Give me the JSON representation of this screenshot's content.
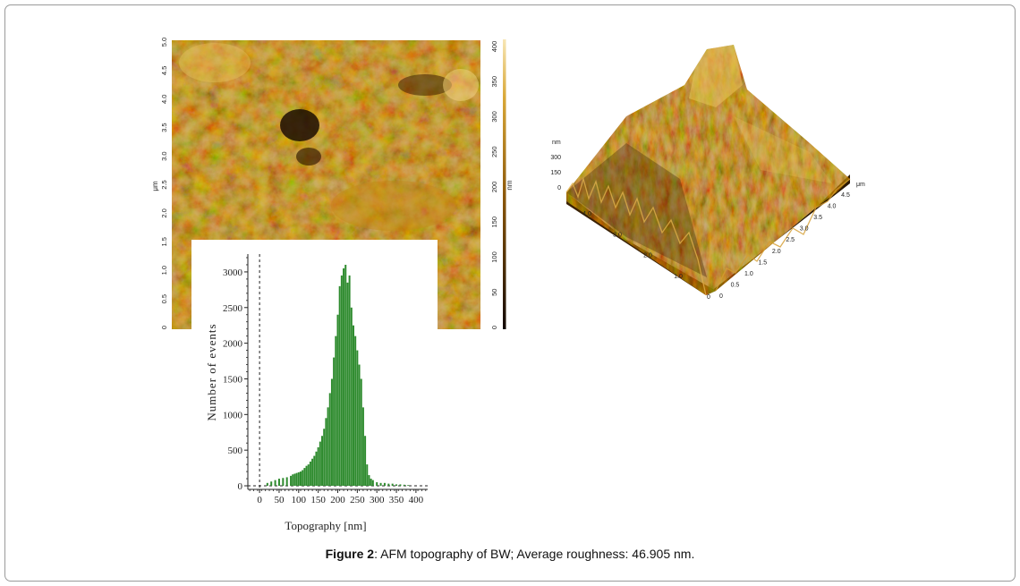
{
  "caption": {
    "figure_label": "Figure 2",
    "text": ": AFM topography of BW; Average roughness: 46.905 nm."
  },
  "afm_2d": {
    "y_axis_unit": "μm",
    "y_ticks": [
      "0",
      "0.5",
      "1.0",
      "1.5",
      "2.0",
      "2.5",
      "3.0",
      "3.5",
      "4.0",
      "4.5",
      "5.0"
    ],
    "colorbar_unit": "nm",
    "colorbar_ticks": [
      "0",
      "50",
      "100",
      "150",
      "200",
      "250",
      "300",
      "350",
      "400"
    ],
    "colors": {
      "dark": "#1c0e02",
      "mid": "#b07a10",
      "light": "#f4dc9c"
    }
  },
  "afm_3d": {
    "z_unit": "nm",
    "z_ticks": [
      "300",
      "150",
      "0"
    ],
    "left_axis_ticks": [
      "4.0",
      "3.0",
      "2.0",
      "1.0",
      "0"
    ],
    "right_axis_unit": "μm",
    "right_axis_ticks": [
      "4.5",
      "4.0",
      "3.5",
      "3.0",
      "2.5",
      "2.0",
      "1.5",
      "1.0",
      "0.5",
      "0"
    ],
    "colors": {
      "shadow": "#3a2104",
      "surface": "#a9720f",
      "highlight": "#e9c25a"
    }
  },
  "chart_data": {
    "type": "bar",
    "title": "",
    "xlabel": "Topography [nm]",
    "ylabel": "Number of events",
    "x_ticks": [
      0,
      50,
      100,
      150,
      200,
      250,
      300,
      350,
      400
    ],
    "y_ticks": [
      0,
      500,
      1000,
      1500,
      2000,
      2500,
      3000
    ],
    "xlim": [
      -30,
      430
    ],
    "ylim": [
      -50,
      3250
    ],
    "bar_color": "#2e8b2e",
    "x": [
      20,
      30,
      40,
      50,
      60,
      70,
      80,
      85,
      90,
      95,
      100,
      105,
      110,
      115,
      120,
      125,
      130,
      135,
      140,
      145,
      150,
      155,
      160,
      165,
      170,
      175,
      180,
      185,
      190,
      195,
      200,
      205,
      210,
      215,
      220,
      225,
      230,
      235,
      240,
      245,
      250,
      255,
      260,
      265,
      270,
      275,
      280,
      285,
      290,
      300,
      310,
      320,
      330,
      340,
      350,
      360,
      370,
      380
    ],
    "values": [
      40,
      60,
      80,
      100,
      110,
      120,
      140,
      160,
      170,
      180,
      190,
      200,
      220,
      250,
      280,
      300,
      340,
      380,
      420,
      480,
      540,
      620,
      700,
      800,
      950,
      1100,
      1300,
      1500,
      1800,
      2100,
      2400,
      2800,
      2950,
      3050,
      3100,
      2850,
      2950,
      2500,
      2250,
      2100,
      1900,
      1700,
      1500,
      1100,
      700,
      300,
      150,
      100,
      80,
      50,
      40,
      40,
      30,
      30,
      20,
      20,
      15,
      10
    ],
    "zero_line": "dashed"
  }
}
